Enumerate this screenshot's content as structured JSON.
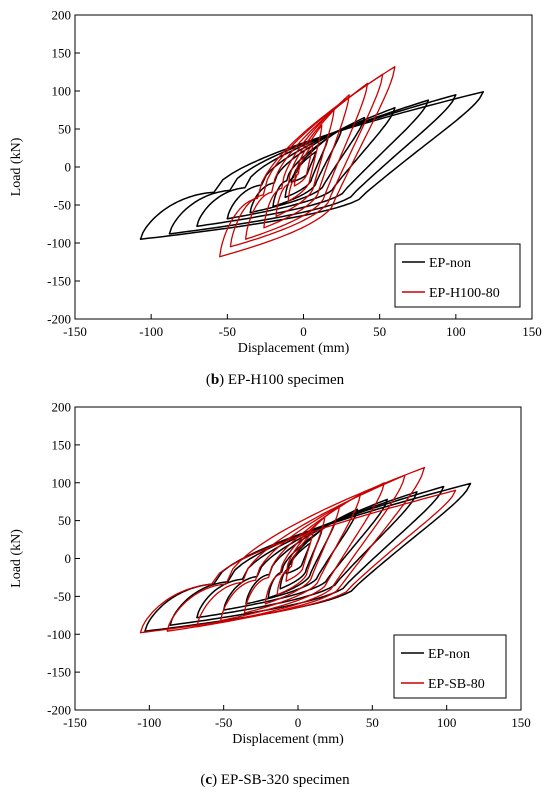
{
  "chart_data": [
    {
      "type": "line",
      "panel_label": "b",
      "caption": "EP-H100 specimen",
      "xlabel": "Displacement (mm)",
      "ylabel": "Load (kN)",
      "xlim": [
        -150,
        150
      ],
      "ylim": [
        -200,
        200
      ],
      "xticks": [
        -150,
        -100,
        -50,
        0,
        50,
        100,
        150
      ],
      "yticks": [
        -200,
        -150,
        -100,
        -50,
        0,
        50,
        100,
        150,
        200
      ],
      "legend_position": "bottom-right",
      "grid": false,
      "series": [
        {
          "name": "EP-non",
          "color": "#000000",
          "loops": [
            {
              "xmax": 8,
              "ypos": 20,
              "xmin": -8,
              "yneg": -20
            },
            {
              "xmax": 16,
              "ypos": 38,
              "xmin": -12,
              "yneg": -40
            },
            {
              "xmax": 25,
              "ypos": 50,
              "xmin": -20,
              "yneg": -52
            },
            {
              "xmax": 40,
              "ypos": 65,
              "xmin": -35,
              "yneg": -60
            },
            {
              "xmax": 60,
              "ypos": 78,
              "xmin": -50,
              "yneg": -68
            },
            {
              "xmax": 82,
              "ypos": 88,
              "xmin": -70,
              "yneg": -78
            },
            {
              "xmax": 100,
              "ypos": 95,
              "xmin": -88,
              "yneg": -88
            },
            {
              "xmax": 118,
              "ypos": 99,
              "xmin": -107,
              "yneg": -95
            }
          ]
        },
        {
          "name": "EP-H100-80",
          "color": "#cc0000",
          "loops": [
            {
              "xmax": 6,
              "ypos": 30,
              "xmin": -6,
              "yneg": -25
            },
            {
              "xmax": 12,
              "ypos": 55,
              "xmin": -10,
              "yneg": -45
            },
            {
              "xmax": 20,
              "ypos": 75,
              "xmin": -18,
              "yneg": -65
            },
            {
              "xmax": 30,
              "ypos": 95,
              "xmin": -26,
              "yneg": -80
            },
            {
              "xmax": 42,
              "ypos": 110,
              "xmin": -38,
              "yneg": -95
            },
            {
              "xmax": 52,
              "ypos": 122,
              "xmin": -48,
              "yneg": -105
            },
            {
              "xmax": 60,
              "ypos": 132,
              "xmin": -55,
              "yneg": -118
            }
          ]
        }
      ]
    },
    {
      "type": "line",
      "panel_label": "c",
      "caption": "EP-SB-320 specimen",
      "xlabel": "Displacement (mm)",
      "ylabel": "Load (kN)",
      "xlim": [
        -150,
        150
      ],
      "ylim": [
        -200,
        200
      ],
      "xticks": [
        -150,
        -100,
        -50,
        0,
        50,
        100,
        150
      ],
      "yticks": [
        -200,
        -150,
        -100,
        -50,
        0,
        50,
        100,
        150,
        200
      ],
      "legend_position": "bottom-right",
      "grid": false,
      "series": [
        {
          "name": "EP-non",
          "color": "#000000",
          "loops": [
            {
              "xmax": 8,
              "ypos": 20,
              "xmin": -8,
              "yneg": -20
            },
            {
              "xmax": 16,
              "ypos": 38,
              "xmin": -12,
              "yneg": -40
            },
            {
              "xmax": 25,
              "ypos": 50,
              "xmin": -20,
              "yneg": -52
            },
            {
              "xmax": 40,
              "ypos": 65,
              "xmin": -35,
              "yneg": -60
            },
            {
              "xmax": 60,
              "ypos": 78,
              "xmin": -50,
              "yneg": -68
            },
            {
              "xmax": 80,
              "ypos": 88,
              "xmin": -68,
              "yneg": -78
            },
            {
              "xmax": 98,
              "ypos": 95,
              "xmin": -86,
              "yneg": -88
            },
            {
              "xmax": 116,
              "ypos": 99,
              "xmin": -103,
              "yneg": -96
            }
          ]
        },
        {
          "name": "EP-SB-80",
          "color": "#cc0000",
          "loops": [
            {
              "xmax": 10,
              "ypos": 35,
              "xmin": -8,
              "yneg": -30
            },
            {
              "xmax": 18,
              "ypos": 55,
              "xmin": -14,
              "yneg": -48
            },
            {
              "xmax": 28,
              "ypos": 70,
              "xmin": -22,
              "yneg": -60
            },
            {
              "xmax": 42,
              "ypos": 85,
              "xmin": -36,
              "yneg": -72
            },
            {
              "xmax": 58,
              "ypos": 100,
              "xmin": -52,
              "yneg": -82
            },
            {
              "xmax": 72,
              "ypos": 110,
              "xmin": -68,
              "yneg": -90
            },
            {
              "xmax": 85,
              "ypos": 120,
              "xmin": -88,
              "yneg": -96
            },
            {
              "xmax": 106,
              "ypos": 90,
              "xmin": -106,
              "yneg": -98
            }
          ]
        }
      ]
    }
  ]
}
